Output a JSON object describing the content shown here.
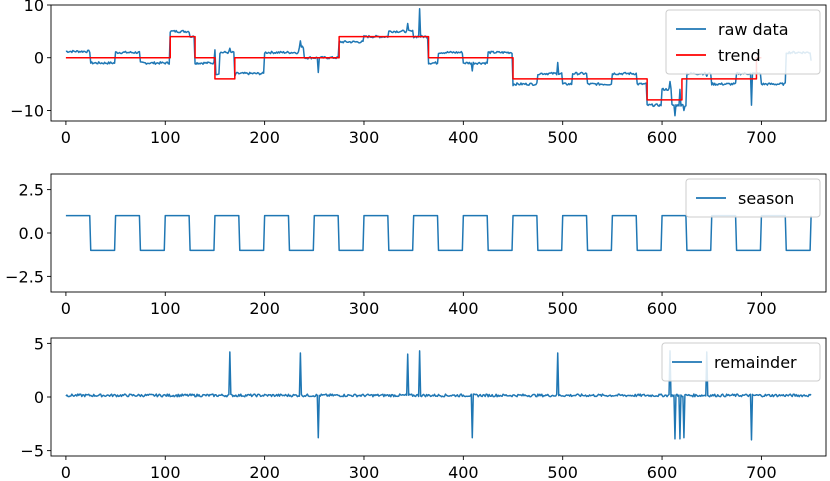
{
  "colors": {
    "raw": "#1f77b4",
    "trend": "#ff0000",
    "season": "#1f77b4",
    "remainder": "#1f77b4"
  },
  "chart_data": [
    {
      "type": "line",
      "xlim": [
        -15,
        765
      ],
      "ylim": [
        -12,
        10
      ],
      "xticks": [
        0,
        100,
        200,
        300,
        400,
        500,
        600,
        700
      ],
      "yticks": [
        -10,
        0,
        10
      ],
      "ytick_labels": [
        "−10",
        "0",
        "10"
      ],
      "legend": "top-right",
      "series": [
        {
          "name": "raw data",
          "color": "#1f77b4",
          "base": {
            "x": [
              0,
              25,
              50,
              75,
              105,
              125,
              130,
              150,
              155,
              170,
              200,
              235,
              240,
              275,
              300,
              325,
              350,
              365,
              375,
              400,
              425,
              450,
              475,
              500,
              510,
              525,
              550,
              575,
              585,
              600,
              610,
              625,
              650,
              675,
              700,
              725,
              750
            ],
            "y": [
              1.2,
              -1,
              1,
              -1,
              5,
              4,
              -1,
              -3,
              1,
              -3,
              1,
              2,
              0,
              3,
              4,
              5,
              4,
              -1,
              1,
              -1,
              1,
              -5,
              -3,
              -5,
              -3,
              -5,
              -3,
              -5,
              -9,
              -6,
              -9,
              -3,
              -5,
              -3,
              -5,
              1,
              -0.5
            ]
          },
          "spikes": [
            {
              "x": 150,
              "y": 1.5
            },
            {
              "x": 165,
              "y": 1.8
            },
            {
              "x": 170,
              "y": -3.5
            },
            {
              "x": 236,
              "y": 3.2
            },
            {
              "x": 254,
              "y": -2.8
            },
            {
              "x": 344,
              "y": 6.5
            },
            {
              "x": 356,
              "y": 9.3
            },
            {
              "x": 409,
              "y": -2.5
            },
            {
              "x": 450,
              "y": -5.3
            },
            {
              "x": 495,
              "y": -0.9
            },
            {
              "x": 608,
              "y": -4.5
            },
            {
              "x": 613,
              "y": -11
            },
            {
              "x": 618,
              "y": -6
            },
            {
              "x": 622,
              "y": -10
            },
            {
              "x": 645,
              "y": -3.5
            },
            {
              "x": 690,
              "y": -9
            }
          ]
        },
        {
          "name": "trend",
          "color": "#ff0000",
          "x": [
            0,
            105,
            105,
            130,
            130,
            150,
            150,
            170,
            170,
            275,
            275,
            365,
            365,
            450,
            450,
            585,
            585,
            620,
            620,
            695,
            695,
            700
          ],
          "y": [
            0,
            0,
            4,
            4,
            0,
            0,
            -4,
            -4,
            0,
            0,
            4,
            4,
            0,
            0,
            -4,
            -4,
            -8,
            -8,
            -4,
            -4,
            0,
            0
          ]
        }
      ]
    },
    {
      "type": "line",
      "xlim": [
        -15,
        765
      ],
      "ylim": [
        -3.4,
        3.4
      ],
      "xticks": [
        0,
        100,
        200,
        300,
        400,
        500,
        600,
        700
      ],
      "yticks": [
        -2.5,
        0,
        2.5
      ],
      "ytick_labels": [
        "−2.5",
        "0.0",
        "2.5"
      ],
      "legend": "top-right",
      "series": [
        {
          "name": "season",
          "color": "#1f77b4",
          "period": 50,
          "high_duration": 25,
          "high": 1,
          "low": -1,
          "x_range": [
            0,
            750
          ]
        }
      ]
    },
    {
      "type": "line",
      "xlim": [
        -15,
        765
      ],
      "ylim": [
        -5.5,
        5.5
      ],
      "xticks": [
        0,
        100,
        200,
        300,
        400,
        500,
        600,
        700
      ],
      "yticks": [
        -5,
        0,
        5
      ],
      "ytick_labels": [
        "−5",
        "0",
        "5"
      ],
      "legend": "top-right",
      "series": [
        {
          "name": "remainder",
          "color": "#1f77b4",
          "base_level": 0.15,
          "x_range": [
            0,
            750
          ],
          "spikes": [
            {
              "x": 165,
              "y": 4.2
            },
            {
              "x": 236,
              "y": 4.1
            },
            {
              "x": 254,
              "y": -3.8
            },
            {
              "x": 344,
              "y": 4.0
            },
            {
              "x": 356,
              "y": 4.3
            },
            {
              "x": 409,
              "y": -3.8
            },
            {
              "x": 495,
              "y": 4.1
            },
            {
              "x": 608,
              "y": 4.3
            },
            {
              "x": 613,
              "y": -3.9
            },
            {
              "x": 618,
              "y": -3.9
            },
            {
              "x": 622,
              "y": -3.8
            },
            {
              "x": 645,
              "y": 4.2
            },
            {
              "x": 690,
              "y": -4.0
            }
          ]
        }
      ]
    }
  ]
}
